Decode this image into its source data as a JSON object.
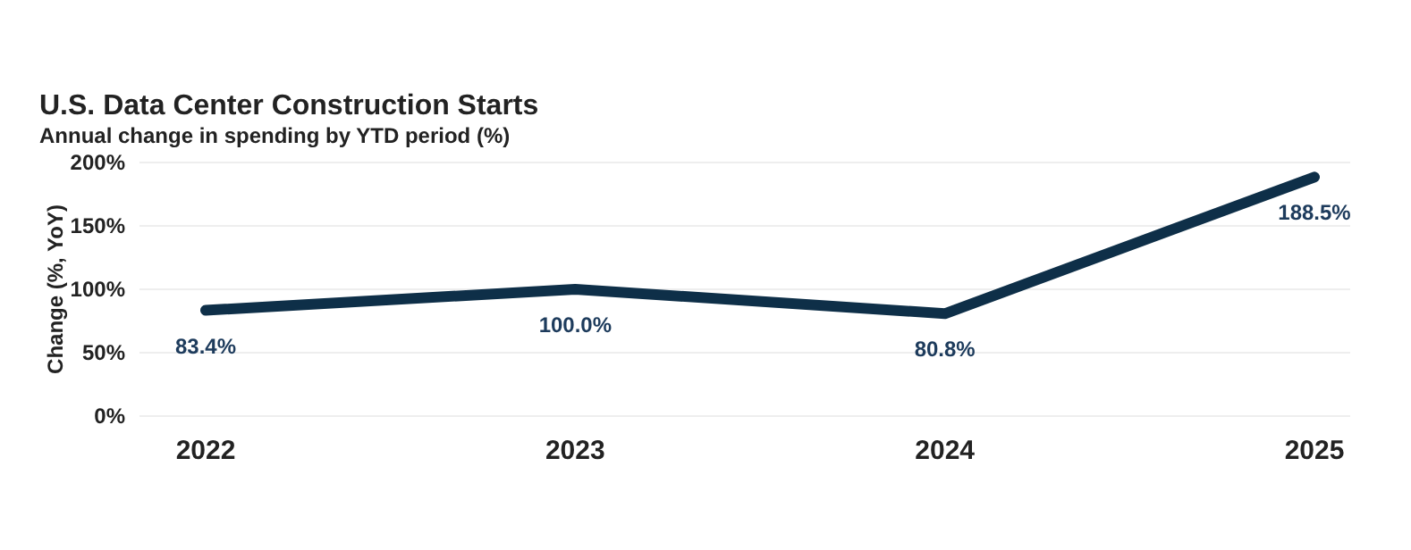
{
  "chart_data": {
    "type": "line",
    "title": "U.S. Data Center Construction Starts",
    "subtitle": "Annual change in spending by YTD period (%)",
    "ylabel": "Change (%, YoY)",
    "categories": [
      "2022",
      "2023",
      "2024",
      "2025"
    ],
    "series": [
      {
        "color": "#0e2f48",
        "values": [
          83.4,
          100.0,
          80.8,
          188.5
        ],
        "value_labels": [
          "83.4%",
          "100.0%",
          "80.8%",
          "188.5%"
        ]
      }
    ],
    "ylim": [
      0,
      200
    ],
    "yticks": [
      {
        "value": 0,
        "label": "0%"
      },
      {
        "value": 50,
        "label": "50%"
      },
      {
        "value": 100,
        "label": "100%"
      },
      {
        "value": 150,
        "label": "150%"
      },
      {
        "value": 200,
        "label": "200%"
      }
    ],
    "grid": "y",
    "marker": "none",
    "line_style": "solid"
  }
}
